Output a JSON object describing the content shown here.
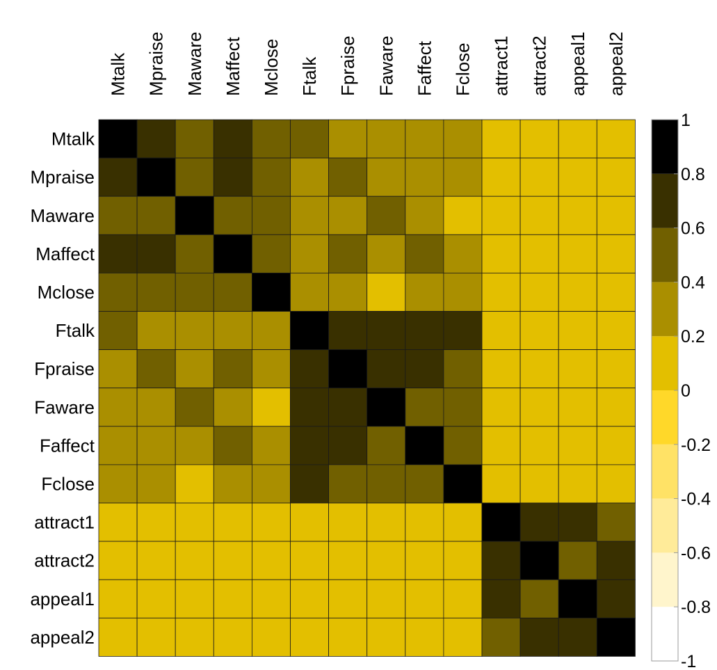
{
  "chart_data": {
    "type": "heatmap",
    "title": "",
    "xlabel": "",
    "ylabel": "",
    "variables": [
      "Mtalk",
      "Mpraise",
      "Maware",
      "Maffect",
      "Mclose",
      "Ftalk",
      "Fpraise",
      "Faware",
      "Faffect",
      "Fclose",
      "attract1",
      "attract2",
      "appeal1",
      "appeal2"
    ],
    "matrix": [
      [
        1.0,
        0.7,
        0.5,
        0.7,
        0.5,
        0.5,
        0.3,
        0.3,
        0.3,
        0.3,
        0.1,
        0.1,
        0.1,
        0.1
      ],
      [
        0.7,
        1.0,
        0.5,
        0.7,
        0.5,
        0.3,
        0.5,
        0.3,
        0.3,
        0.3,
        0.1,
        0.1,
        0.1,
        0.1
      ],
      [
        0.5,
        0.5,
        1.0,
        0.5,
        0.5,
        0.3,
        0.3,
        0.5,
        0.3,
        0.1,
        0.1,
        0.1,
        0.1,
        0.1
      ],
      [
        0.7,
        0.7,
        0.5,
        1.0,
        0.5,
        0.3,
        0.5,
        0.3,
        0.5,
        0.3,
        0.1,
        0.1,
        0.1,
        0.1
      ],
      [
        0.5,
        0.5,
        0.5,
        0.5,
        1.0,
        0.3,
        0.3,
        0.1,
        0.3,
        0.3,
        0.1,
        0.1,
        0.1,
        0.1
      ],
      [
        0.5,
        0.3,
        0.3,
        0.3,
        0.3,
        1.0,
        0.7,
        0.7,
        0.7,
        0.7,
        0.1,
        0.1,
        0.1,
        0.1
      ],
      [
        0.3,
        0.5,
        0.3,
        0.5,
        0.3,
        0.7,
        1.0,
        0.7,
        0.7,
        0.5,
        0.1,
        0.1,
        0.1,
        0.1
      ],
      [
        0.3,
        0.3,
        0.5,
        0.3,
        0.1,
        0.7,
        0.7,
        1.0,
        0.5,
        0.5,
        0.1,
        0.1,
        0.1,
        0.1
      ],
      [
        0.3,
        0.3,
        0.3,
        0.5,
        0.3,
        0.7,
        0.7,
        0.5,
        1.0,
        0.5,
        0.1,
        0.1,
        0.1,
        0.1
      ],
      [
        0.3,
        0.3,
        0.1,
        0.3,
        0.3,
        0.7,
        0.5,
        0.5,
        0.5,
        1.0,
        0.1,
        0.1,
        0.1,
        0.1
      ],
      [
        0.1,
        0.1,
        0.1,
        0.1,
        0.1,
        0.1,
        0.1,
        0.1,
        0.1,
        0.1,
        1.0,
        0.7,
        0.7,
        0.5
      ],
      [
        0.1,
        0.1,
        0.1,
        0.1,
        0.1,
        0.1,
        0.1,
        0.1,
        0.1,
        0.1,
        0.7,
        1.0,
        0.5,
        0.7
      ],
      [
        0.1,
        0.1,
        0.1,
        0.1,
        0.1,
        0.1,
        0.1,
        0.1,
        0.1,
        0.1,
        0.7,
        0.5,
        1.0,
        0.7
      ],
      [
        0.1,
        0.1,
        0.1,
        0.1,
        0.1,
        0.1,
        0.1,
        0.1,
        0.1,
        0.1,
        0.5,
        0.7,
        0.7,
        1.0
      ]
    ],
    "colorbar": {
      "range": [
        -1,
        1
      ],
      "bins": [
        {
          "from": -1.0,
          "to": -0.8,
          "color": "#ffffff"
        },
        {
          "from": -0.8,
          "to": -0.6,
          "color": "#fff5cc"
        },
        {
          "from": -0.6,
          "to": -0.4,
          "color": "#ffeb99"
        },
        {
          "from": -0.4,
          "to": -0.2,
          "color": "#ffe266"
        },
        {
          "from": -0.2,
          "to": 0.0,
          "color": "#ffd829"
        },
        {
          "from": 0.0,
          "to": 0.2,
          "color": "#e3bf00"
        },
        {
          "from": 0.2,
          "to": 0.4,
          "color": "#aa8f00"
        },
        {
          "from": 0.4,
          "to": 0.6,
          "color": "#716000"
        },
        {
          "from": 0.6,
          "to": 0.8,
          "color": "#393000"
        },
        {
          "from": 0.8,
          "to": 1.0,
          "color": "#000000"
        }
      ],
      "ticks": [
        {
          "value": 1.0,
          "label": "1"
        },
        {
          "value": 0.8,
          "label": "0.8"
        },
        {
          "value": 0.6,
          "label": "0.6"
        },
        {
          "value": 0.4,
          "label": "0.4"
        },
        {
          "value": 0.2,
          "label": "0.2"
        },
        {
          "value": 0.0,
          "label": "0"
        },
        {
          "value": -0.2,
          "label": "-0.2"
        },
        {
          "value": -0.4,
          "label": "-0.4"
        },
        {
          "value": -0.6,
          "label": "-0.6"
        },
        {
          "value": -0.8,
          "label": "-0.8"
        },
        {
          "value": -1.0,
          "label": "-1"
        }
      ]
    },
    "legend": "right",
    "grid": true
  }
}
